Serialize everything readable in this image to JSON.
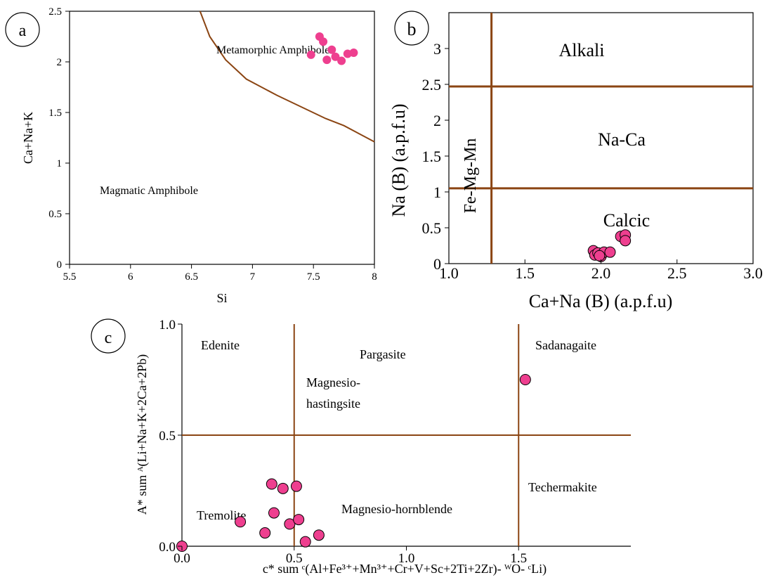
{
  "chart_data": [
    {
      "panel": "a",
      "type": "scatter",
      "xlabel": "Si",
      "ylabel": "Ca+Na+K",
      "xlim": [
        5.5,
        8
      ],
      "ylim": [
        0,
        2.5
      ],
      "xticks": [
        "5.5",
        "6",
        "6.5",
        "7",
        "7.5",
        "8"
      ],
      "yticks": [
        "0",
        "0.5",
        "1",
        "1.5",
        "2",
        "2.5"
      ],
      "fields": [
        "Metamorphic Amphibole",
        "Magmatic Amphibole"
      ],
      "boundary": [
        [
          6.57,
          2.5
        ],
        [
          6.65,
          2.25
        ],
        [
          6.78,
          2.02
        ],
        [
          6.95,
          1.83
        ],
        [
          7.2,
          1.67
        ],
        [
          7.6,
          1.44
        ],
        [
          7.75,
          1.37
        ],
        [
          8.0,
          1.21
        ]
      ],
      "points": [
        [
          7.48,
          2.07
        ],
        [
          7.55,
          2.25
        ],
        [
          7.58,
          2.2
        ],
        [
          7.61,
          2.02
        ],
        [
          7.65,
          2.12
        ],
        [
          7.68,
          2.05
        ],
        [
          7.73,
          2.01
        ],
        [
          7.78,
          2.08
        ],
        [
          7.83,
          2.09
        ]
      ],
      "marker_color": "#ee3f8f",
      "line_color": "#8b4513"
    },
    {
      "panel": "b",
      "type": "scatter",
      "xlabel": "Ca+Na (B) (a.p.f.u)",
      "ylabel": "Na (B) (a.p.f.u)",
      "xlim": [
        1.0,
        3.0
      ],
      "ylim": [
        0,
        3.5
      ],
      "xticks": [
        "1.0",
        "1.5",
        "2.0",
        "2.5",
        "3.0"
      ],
      "yticks": [
        "0",
        "0.5",
        "1",
        "1.5",
        "2",
        "2.5",
        "3"
      ],
      "fields": [
        "Alkali",
        "Na-Ca",
        "Calcic",
        "Fe-Mg-Mn"
      ],
      "boundaries": {
        "vertical_x": 1.28,
        "horizontal_y": [
          2.47,
          1.05
        ]
      },
      "points": [
        [
          1.95,
          0.18
        ],
        [
          1.96,
          0.12
        ],
        [
          1.98,
          0.15
        ],
        [
          2.0,
          0.1
        ],
        [
          2.02,
          0.16
        ],
        [
          2.06,
          0.16
        ],
        [
          2.13,
          0.38
        ],
        [
          2.16,
          0.4
        ],
        [
          2.16,
          0.32
        ],
        [
          1.99,
          0.11
        ]
      ],
      "marker_color": "#ee3f8f",
      "line_color": "#8b4513"
    },
    {
      "panel": "c",
      "type": "scatter",
      "xlabel": "c* sum ᶜ(Al+Fe³⁺+Mn³⁺+Cr+V+Sc+2Ti+2Zr)- ᵂO- ᶜLi)",
      "ylabel": "A* sum ᴬ(Li+Na+K+2Ca+2Pb)",
      "xlim": [
        0,
        2.0
      ],
      "ylim": [
        0,
        1.0
      ],
      "xticks": [
        "0.0",
        "0.5",
        "1.0",
        "1.5"
      ],
      "yticks": [
        "0.0",
        "0.5",
        "1.0"
      ],
      "fields": [
        "Edenite",
        "Pargasite",
        "Magnesio-",
        "hastingsite",
        "Sadanagaite",
        "Tremolite",
        "Magnesio-hornblende",
        "Techermakite"
      ],
      "boundaries": {
        "vertical_x": [
          0.5,
          1.5
        ],
        "horizontal_y": 0.5
      },
      "points": [
        [
          0.0,
          0.0
        ],
        [
          0.26,
          0.11
        ],
        [
          0.37,
          0.06
        ],
        [
          0.4,
          0.28
        ],
        [
          0.41,
          0.15
        ],
        [
          0.45,
          0.26
        ],
        [
          0.48,
          0.1
        ],
        [
          0.51,
          0.27
        ],
        [
          0.52,
          0.12
        ],
        [
          0.55,
          0.02
        ],
        [
          0.61,
          0.05
        ],
        [
          1.53,
          0.75
        ]
      ],
      "marker_color": "#ee3f8f",
      "line_color": "#8b4513"
    }
  ]
}
